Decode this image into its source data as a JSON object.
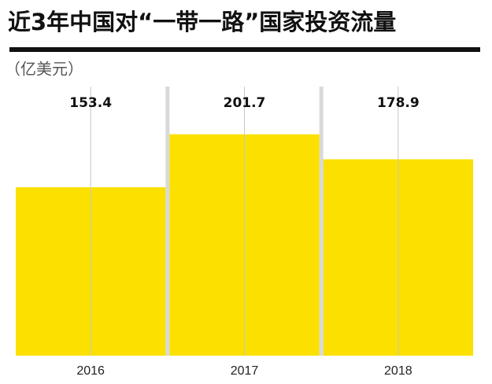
{
  "chart_data": {
    "type": "bar",
    "title": "近3年中国对“一带一路”国家投资流量",
    "subtitle": "（亿美元）",
    "categories": [
      "2016",
      "2017",
      "2018"
    ],
    "values": [
      153.4,
      201.7,
      178.9
    ],
    "color": "#fbe000"
  }
}
